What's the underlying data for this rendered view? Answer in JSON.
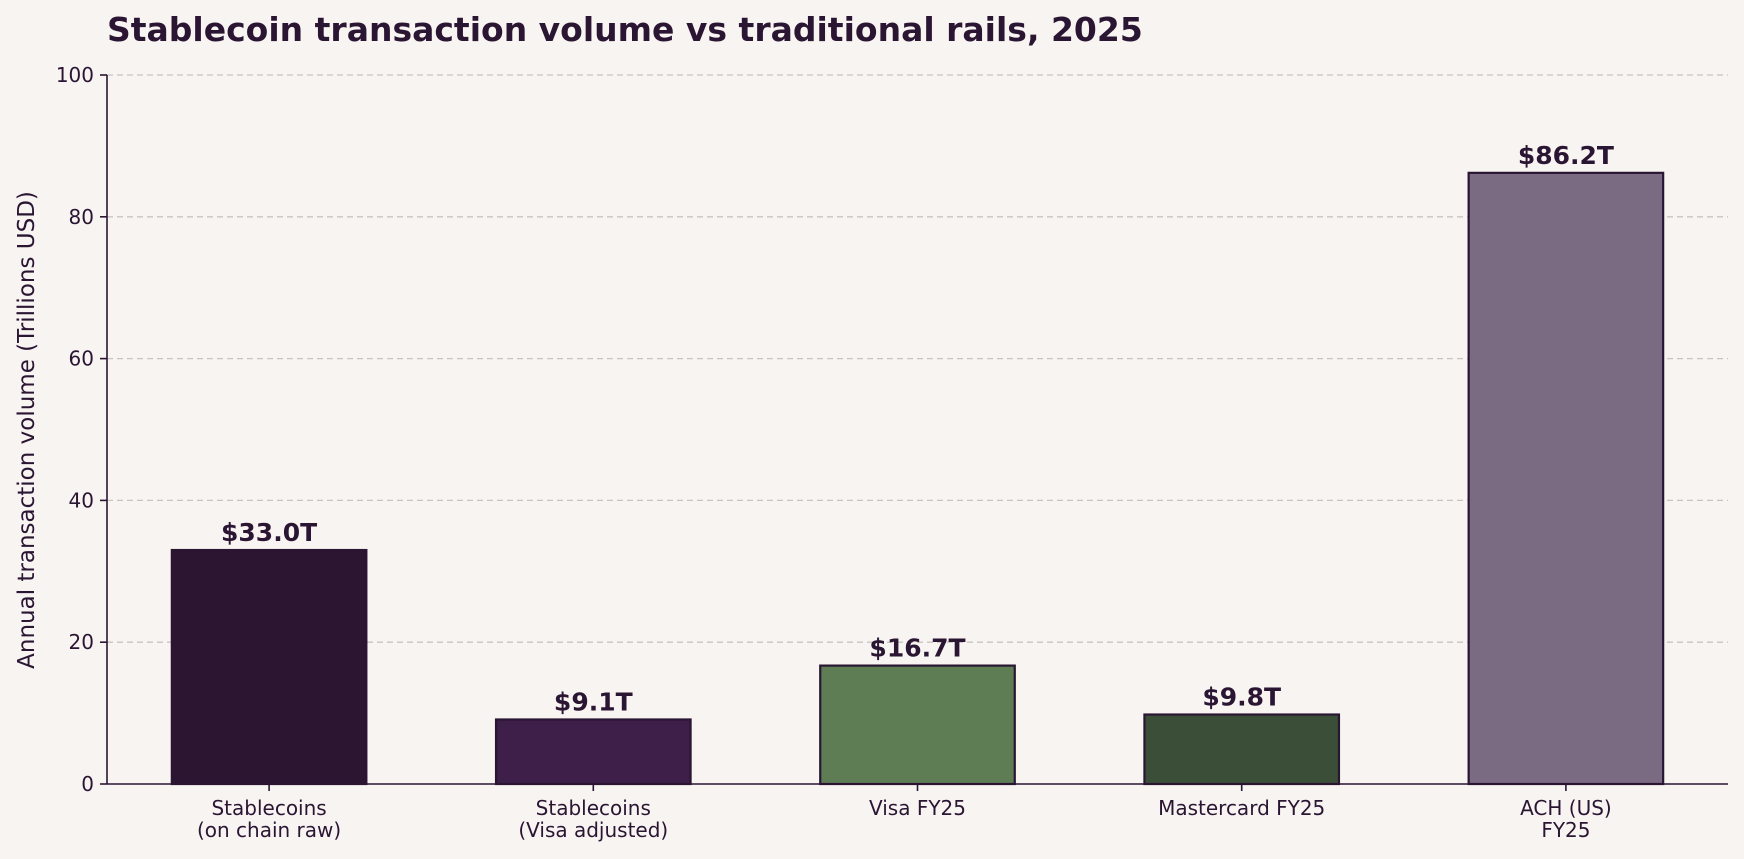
{
  "chart_data": {
    "type": "bar",
    "title": "Stablecoin transaction volume vs traditional rails, 2025",
    "xlabel": "",
    "ylabel": "Annual transaction volume (Trillions USD)",
    "ylim": [
      0,
      100
    ],
    "yticks": [
      0,
      20,
      40,
      60,
      80,
      100
    ],
    "grid": true,
    "categories": [
      [
        "Stablecoins",
        "(on chain raw)"
      ],
      [
        "Stablecoins",
        "(Visa adjusted)"
      ],
      [
        "Visa FY25"
      ],
      [
        "Mastercard FY25"
      ],
      [
        "ACH (US)",
        "FY25"
      ]
    ],
    "values": [
      33.0,
      9.1,
      16.7,
      9.8,
      86.2
    ],
    "value_labels": [
      "$33.0T",
      "$9.1T",
      "$16.7T",
      "$9.8T",
      "$86.2T"
    ],
    "colors": [
      "#2b1530",
      "#3e1f4a",
      "#5e7d55",
      "#3b4f38",
      "#7a6a82"
    ]
  }
}
